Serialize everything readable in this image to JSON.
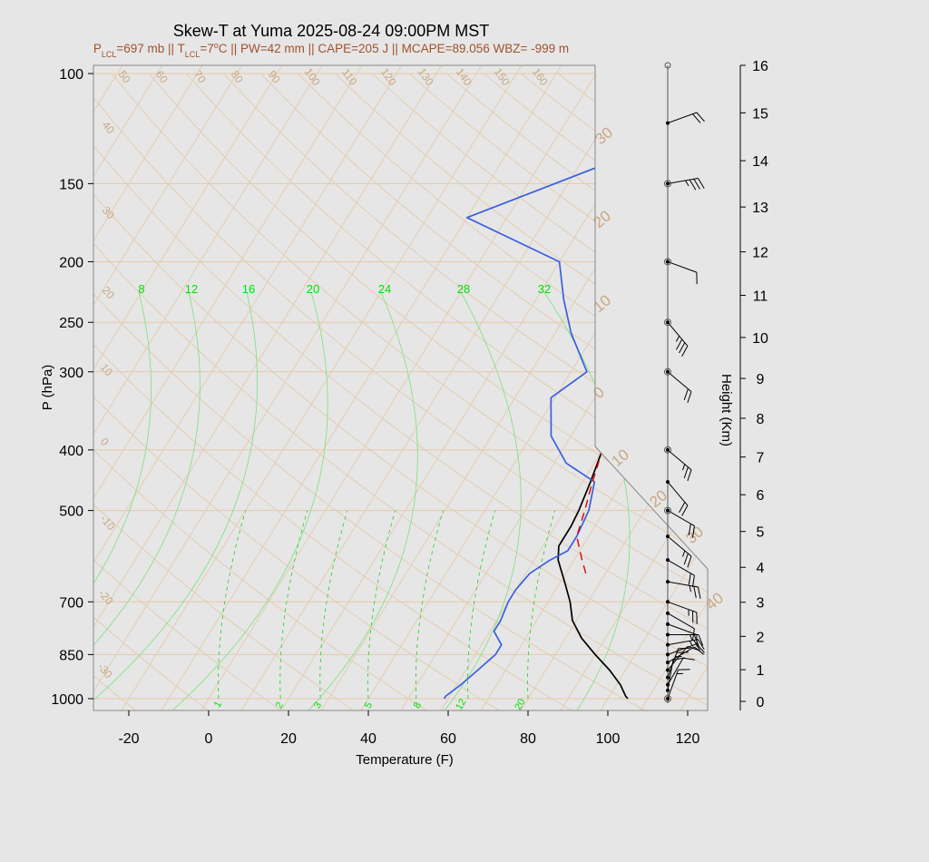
{
  "chart_data": {
    "type": "line",
    "chart_kind": "skew-t log-p sounding",
    "title": "Skew-T at Yuma 2025-08-24 09:00PM MST",
    "subtitle": {
      "plcl_label": "P",
      "plcl_sub": "LCL",
      "plcl_value": "=697 mb || T",
      "tlcl_sub": "LCL",
      "tlcl_value": "=7",
      "deg": "o",
      "rest": "C || PW=42 mm || CAPE=205 J || MCAPE=89.056 WBZ= -999 m"
    },
    "xlabel": "Temperature (F)",
    "ylabel": "P (hPa)",
    "y2label": "Height (Km)",
    "x_ticks": [
      -20,
      0,
      20,
      40,
      60,
      80,
      100,
      120
    ],
    "x_range_at_1000hPa": [
      -28,
      125
    ],
    "pressure_ticks": [
      100,
      150,
      200,
      250,
      300,
      400,
      500,
      700,
      850,
      1000
    ],
    "pressure_range": [
      100,
      1050
    ],
    "height_ticks_km": [
      0,
      1,
      2,
      3,
      4,
      5,
      6,
      7,
      8,
      9,
      10,
      11,
      12,
      13,
      14,
      15,
      16
    ],
    "isotherm_labels": [
      "50",
      "60",
      "70",
      "80",
      "90",
      "100",
      "110",
      "120",
      "130",
      "140",
      "150",
      "160"
    ],
    "dry_adiabat_labels": [
      "40",
      "30",
      "20",
      "10",
      "0",
      "-10",
      "-20",
      "-30"
    ],
    "dry_adiabat_big_labels": [
      "30",
      "20",
      "10",
      "0",
      "10",
      "20",
      "30",
      "40"
    ],
    "theta_e_labels": [
      "8",
      "12",
      "16",
      "20",
      "24",
      "28",
      "32"
    ],
    "mixing_ratio_labels": [
      "1",
      "2",
      "3",
      "5",
      "8",
      "12",
      "20"
    ],
    "series": [
      {
        "name": "Temperature",
        "color": "#000000",
        "values": [
          [
            1000,
            105
          ],
          [
            990,
            104
          ],
          [
            950,
            101
          ],
          [
            900,
            96
          ],
          [
            850,
            90
          ],
          [
            800,
            84
          ],
          [
            750,
            79
          ],
          [
            700,
            75.5
          ],
          [
            650,
            71
          ],
          [
            600,
            66
          ],
          [
            570,
            64
          ],
          [
            530,
            64
          ],
          [
            500,
            63.5
          ],
          [
            450,
            62
          ],
          [
            400,
            60
          ],
          [
            350,
            56
          ],
          [
            300,
            50
          ],
          [
            250,
            43
          ],
          [
            230,
            38
          ],
          [
            200,
            32
          ],
          [
            170,
            33
          ],
          [
            150,
            36
          ],
          [
            130,
            43
          ],
          [
            100,
            69
          ]
        ]
      },
      {
        "name": "Dewpoint",
        "color": "#3b5fe0",
        "values": [
          [
            1000,
            59
          ],
          [
            990,
            59
          ],
          [
            950,
            61
          ],
          [
            900,
            63
          ],
          [
            850,
            65
          ],
          [
            820,
            65
          ],
          [
            800,
            63
          ],
          [
            780,
            61
          ],
          [
            750,
            61
          ],
          [
            700,
            60
          ],
          [
            670,
            60
          ],
          [
            630,
            61
          ],
          [
            600,
            64
          ],
          [
            580,
            67
          ],
          [
            550,
            67
          ],
          [
            500,
            66
          ],
          [
            450,
            63
          ],
          [
            420,
            53
          ],
          [
            380,
            45
          ],
          [
            330,
            39
          ],
          [
            300,
            44
          ],
          [
            260,
            34
          ],
          [
            230,
            27
          ],
          [
            200,
            20
          ],
          [
            170,
            -10
          ],
          [
            140,
            16
          ],
          [
            100,
            50
          ]
        ]
      },
      {
        "name": "Parcel",
        "color": "#e00000",
        "dash": true,
        "values": [
          [
            630,
            75
          ],
          [
            600,
            72
          ],
          [
            550,
            67
          ],
          [
            500,
            65
          ],
          [
            460,
            63
          ],
          [
            400,
            60
          ],
          [
            350,
            56.5
          ],
          [
            300,
            51
          ],
          [
            250,
            44
          ],
          [
            230,
            40
          ]
        ]
      }
    ],
    "wind_barbs": [
      {
        "p": 1000,
        "spd": 5,
        "dir": 200
      },
      {
        "p": 970,
        "spd": 10,
        "dir": 190
      },
      {
        "p": 950,
        "spd": 10,
        "dir": 210
      },
      {
        "p": 925,
        "spd": 15,
        "dir": 200
      },
      {
        "p": 900,
        "spd": 10,
        "dir": 220
      },
      {
        "p": 875,
        "spd": 10,
        "dir": 240
      },
      {
        "p": 850,
        "spd": 10,
        "dir": 250
      },
      {
        "p": 820,
        "spd": 15,
        "dir": 260
      },
      {
        "p": 790,
        "spd": 15,
        "dir": 270
      },
      {
        "p": 760,
        "spd": 10,
        "dir": 290
      },
      {
        "p": 730,
        "spd": 10,
        "dir": 300
      },
      {
        "p": 700,
        "spd": 15,
        "dir": 290
      },
      {
        "p": 650,
        "spd": 15,
        "dir": 280
      },
      {
        "p": 600,
        "spd": 20,
        "dir": 300
      },
      {
        "p": 550,
        "spd": 15,
        "dir": 310
      },
      {
        "p": 500,
        "spd": 20,
        "dir": 300
      },
      {
        "p": 450,
        "spd": 20,
        "dir": 320
      },
      {
        "p": 400,
        "spd": 15,
        "dir": 310
      },
      {
        "p": 300,
        "spd": 20,
        "dir": 310
      },
      {
        "p": 250,
        "spd": 25,
        "dir": 320
      },
      {
        "p": 200,
        "spd": 10,
        "dir": 290
      },
      {
        "p": 150,
        "spd": 25,
        "dir": 260
      },
      {
        "p": 120,
        "spd": 20,
        "dir": 250
      }
    ]
  },
  "colors": {
    "background": "#e6e6e6",
    "isotherm": "#e3cdb3",
    "isobar": "#e6c9a8",
    "mixing_ratio": "#20d020",
    "label_tan": "#c8a882",
    "subtitle": "#a0522d"
  }
}
